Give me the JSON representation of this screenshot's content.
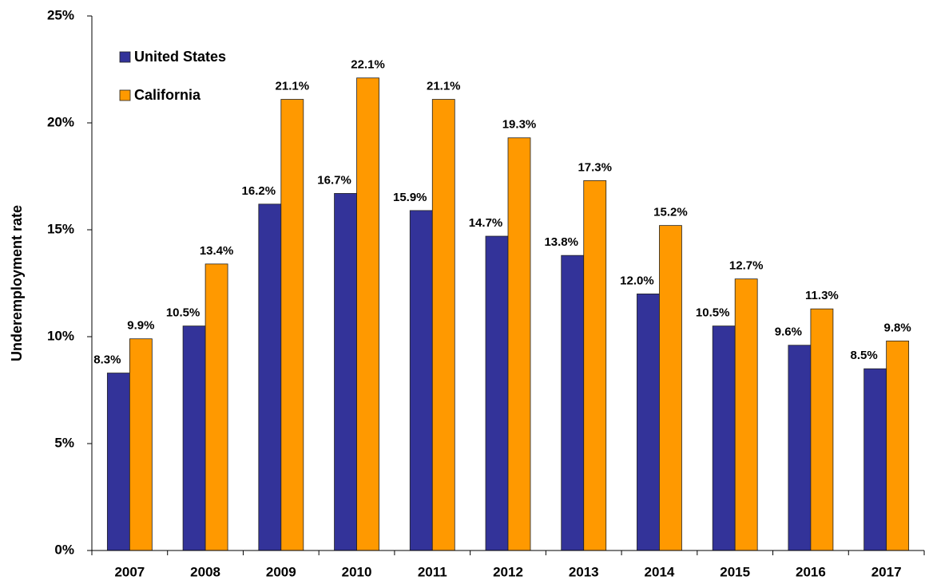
{
  "chart_data": {
    "type": "bar",
    "y_label": "Underemployment rate",
    "categories": [
      "2007",
      "2008",
      "2009",
      "2010",
      "2011",
      "2012",
      "2013",
      "2014",
      "2015",
      "2016",
      "2017"
    ],
    "series": [
      {
        "name": "United States",
        "color": "#333399",
        "values": [
          8.3,
          10.5,
          16.2,
          16.7,
          15.9,
          14.7,
          13.8,
          12.0,
          10.5,
          9.6,
          8.5
        ],
        "value_labels": [
          "8.3%",
          "10.5%",
          "16.2%",
          "16.7%",
          "15.9%",
          "14.7%",
          "13.8%",
          "12.0%",
          "10.5%",
          "9.6%",
          "8.5%"
        ]
      },
      {
        "name": "California",
        "color": "#ff9900",
        "values": [
          9.9,
          13.4,
          21.1,
          22.1,
          21.1,
          19.3,
          17.3,
          15.2,
          12.7,
          11.3,
          9.8
        ],
        "value_labels": [
          "9.9%",
          "13.4%",
          "21.1%",
          "22.1%",
          "21.1%",
          "19.3%",
          "17.3%",
          "15.2%",
          "12.7%",
          "11.3%",
          "9.8%"
        ]
      }
    ],
    "ylim": [
      0,
      25
    ],
    "yticks": [
      {
        "value": 0,
        "label": "0%"
      },
      {
        "value": 5,
        "label": "5%"
      },
      {
        "value": 10,
        "label": "10%"
      },
      {
        "value": 15,
        "label": "15%"
      },
      {
        "value": 20,
        "label": "20%"
      },
      {
        "value": 25,
        "label": "25%"
      }
    ],
    "grid": false,
    "legend": "upper left"
  }
}
